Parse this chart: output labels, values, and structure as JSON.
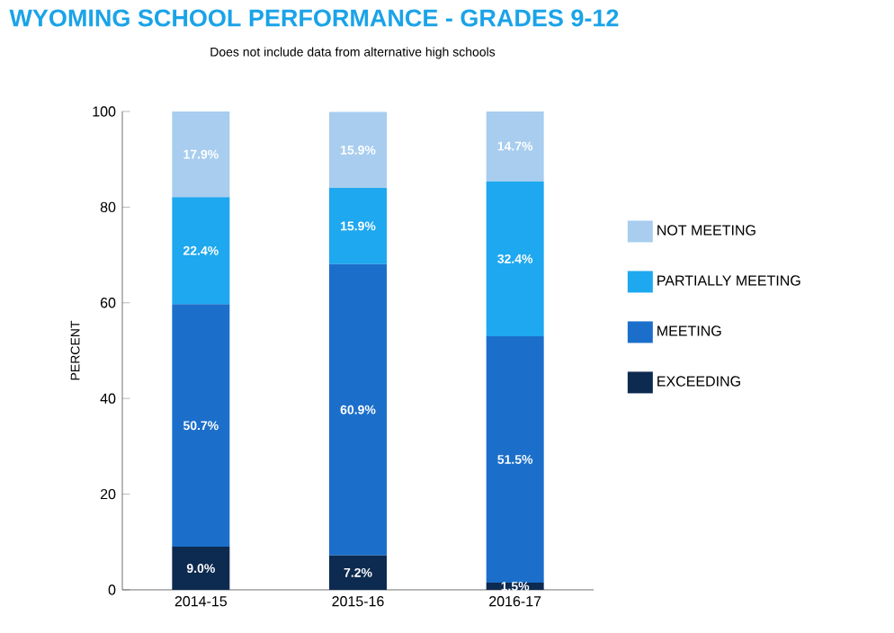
{
  "chart_data": {
    "type": "bar",
    "stacked": true,
    "title": "WYOMING SCHOOL PERFORMANCE - GRADES 9-12",
    "subtitle": "Does not include data from alternative high schools",
    "ylabel": "PERCENT",
    "categories": [
      "2014-15",
      "2015-16",
      "2016-17"
    ],
    "series": [
      {
        "name": "EXCEEDING",
        "color": "#0d2a50",
        "values": [
          9.0,
          7.2,
          1.5
        ],
        "value_labels": [
          "9.0%",
          "7.2%",
          "1.5%"
        ]
      },
      {
        "name": "MEETING",
        "color": "#1b6fca",
        "values": [
          50.7,
          60.9,
          51.5
        ],
        "value_labels": [
          "50.7%",
          "60.9%",
          "51.5%"
        ]
      },
      {
        "name": "PARTIALLY MEETING",
        "color": "#1ea8ef",
        "values": [
          22.4,
          15.9,
          32.4
        ],
        "value_labels": [
          "22.4%",
          "15.9%",
          "32.4%"
        ]
      },
      {
        "name": "NOT MEETING",
        "color": "#a8cdef",
        "values": [
          17.9,
          15.9,
          14.7
        ],
        "value_labels": [
          "17.9%",
          "15.9%",
          "14.7%"
        ]
      }
    ],
    "ylim": [
      0,
      100
    ],
    "yticks": [
      0,
      20,
      40,
      60,
      80,
      100
    ],
    "legend": "right"
  }
}
